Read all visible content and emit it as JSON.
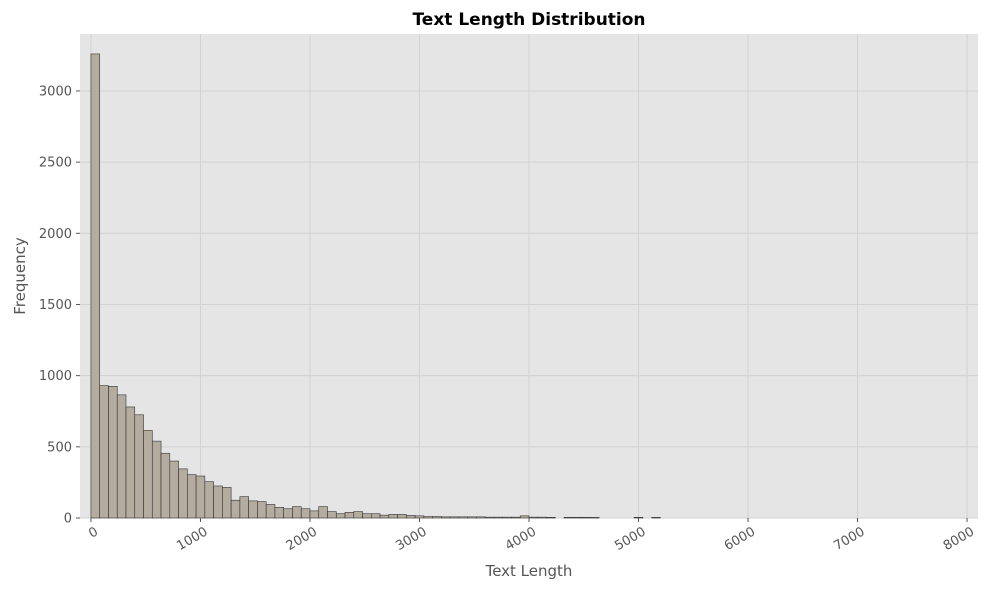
{
  "chart_data": {
    "type": "bar",
    "title": "Text Length Distribution",
    "xlabel": "Text Length",
    "ylabel": "Frequency",
    "xlim": [
      -100,
      8100
    ],
    "ylim": [
      0,
      3400
    ],
    "x_ticks": [
      0,
      1000,
      2000,
      3000,
      4000,
      5000,
      6000,
      7000,
      8000
    ],
    "y_ticks": [
      0,
      500,
      1000,
      1500,
      2000,
      2500,
      3000
    ],
    "grid": true,
    "bin_width": 80,
    "bins_start": [
      0,
      80,
      160,
      240,
      320,
      400,
      480,
      560,
      640,
      720,
      800,
      880,
      960,
      1040,
      1120,
      1200,
      1280,
      1360,
      1440,
      1520,
      1600,
      1680,
      1760,
      1840,
      1920,
      2000,
      2080,
      2160,
      2240,
      2320,
      2400,
      2480,
      2560,
      2640,
      2720,
      2800,
      2880,
      2960,
      3040,
      3120,
      3200,
      3280,
      3360,
      3440,
      3520,
      3600,
      3680,
      3760,
      3840,
      3920,
      4000,
      4080,
      4160,
      4240,
      4320,
      4400,
      4480,
      4560,
      4640,
      4720,
      4800,
      4880,
      4960,
      5040,
      5120
    ],
    "values": [
      3260,
      930,
      925,
      865,
      780,
      725,
      615,
      540,
      455,
      400,
      345,
      305,
      295,
      255,
      225,
      215,
      125,
      150,
      120,
      115,
      95,
      75,
      65,
      80,
      65,
      50,
      80,
      45,
      30,
      40,
      45,
      30,
      30,
      20,
      25,
      25,
      18,
      15,
      10,
      10,
      8,
      8,
      8,
      8,
      8,
      6,
      6,
      6,
      6,
      15,
      6,
      6,
      5,
      0,
      5,
      5,
      5,
      4,
      0,
      0,
      0,
      0,
      5,
      0,
      4
    ],
    "colors": {
      "bar_fill": "#b5aca0",
      "bar_edge": "#333333",
      "plot_bg": "#e5e5e5",
      "grid": "#d2d2d2",
      "tick_text": "#555555",
      "label_text": "#555555",
      "title_text": "#000000"
    }
  }
}
